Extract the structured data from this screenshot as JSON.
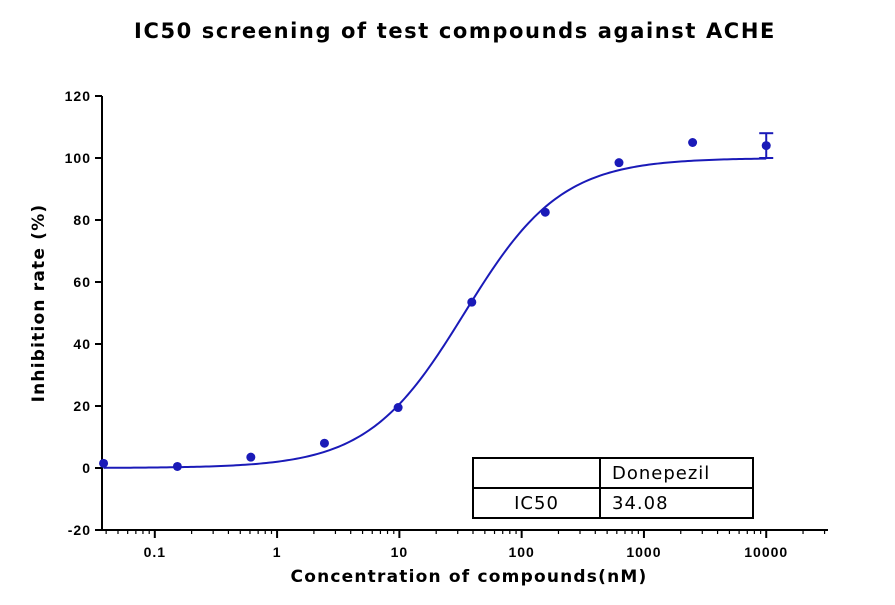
{
  "chart_data": {
    "type": "scatter",
    "title": "IC50 screening of test compounds against ACHE",
    "xlabel": "Concentration of compounds(nM)",
    "ylabel": "Inhibition rate (%)",
    "x_scale": "log",
    "xlim": [
      0.037,
      32000
    ],
    "ylim": [
      -20,
      120
    ],
    "x_ticks": [
      0.1,
      1,
      10,
      100,
      1000,
      10000
    ],
    "x_tick_labels": [
      "0.1",
      "1",
      "10",
      "100",
      "1000",
      "10000"
    ],
    "y_ticks": [
      -20,
      0,
      20,
      40,
      60,
      80,
      100,
      120
    ],
    "y_tick_labels": [
      "-20",
      "0",
      "20",
      "40",
      "60",
      "80",
      "100",
      "120"
    ],
    "grid": false,
    "color": "#1a1ab8",
    "series": [
      {
        "x": [
          0.0381,
          0.153,
          0.61,
          2.44,
          9.77,
          39.1,
          156,
          625,
          2500,
          10000
        ],
        "y": [
          1.5,
          0.5,
          3.5,
          8,
          19.5,
          53.5,
          82.5,
          98.5,
          105,
          104
        ],
        "y_err": [
          0,
          0,
          0,
          0,
          0,
          0,
          0,
          0,
          0,
          4
        ]
      }
    ],
    "fit": {
      "bottom": 0,
      "top": 100,
      "ic50": 34.08,
      "hill": 1.1
    },
    "table": {
      "header": [
        "",
        "Donepezil"
      ],
      "rows": [
        [
          "IC50",
          "34.08"
        ]
      ]
    }
  }
}
